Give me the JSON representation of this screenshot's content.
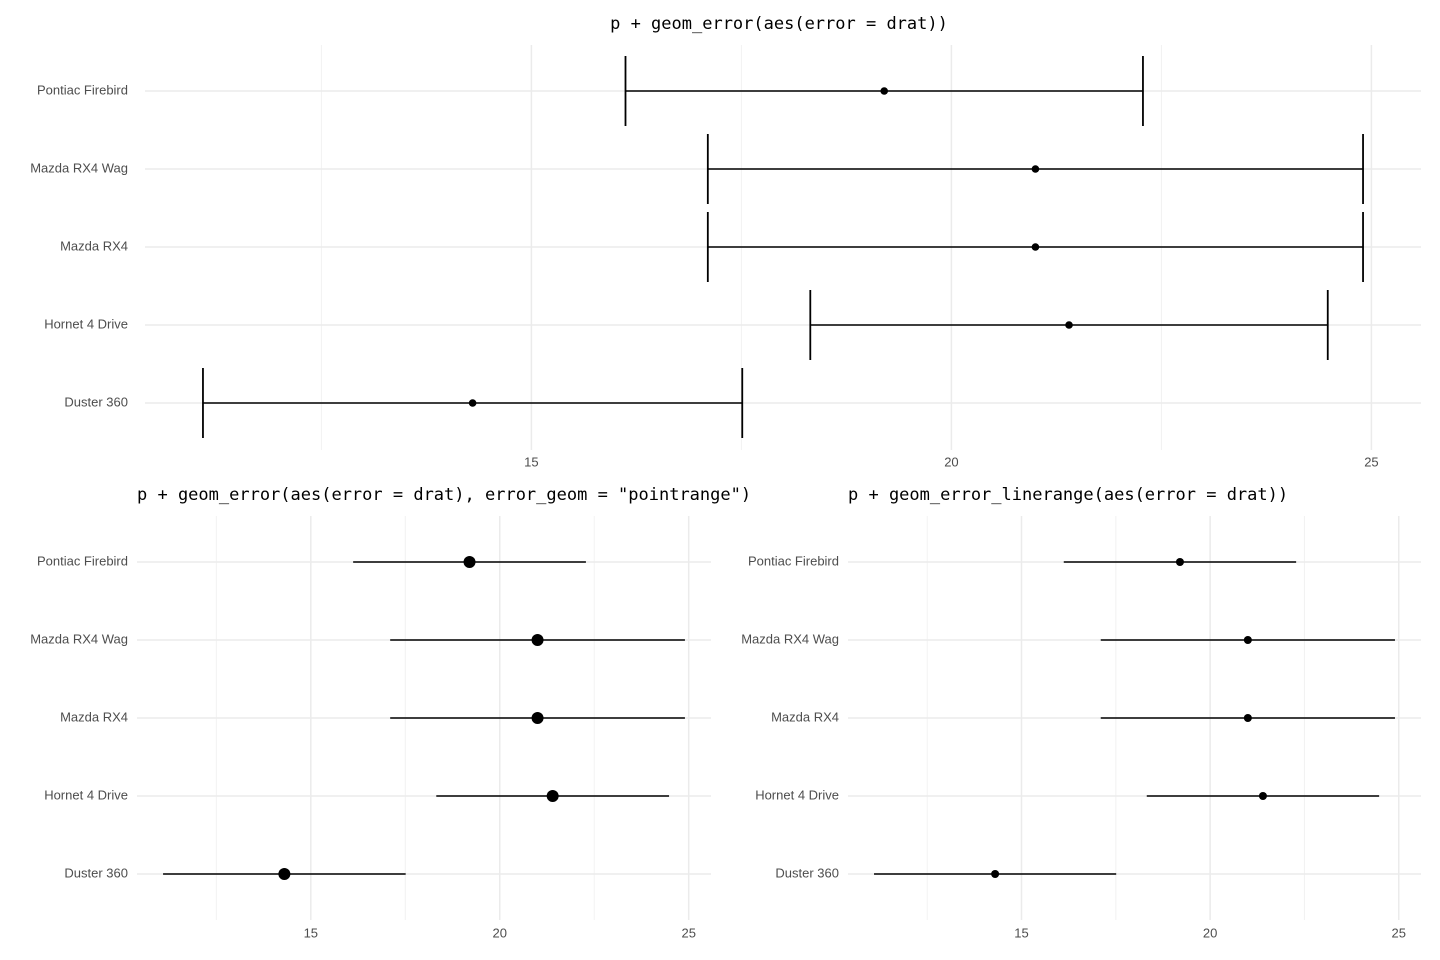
{
  "chart_data": [
    {
      "type": "errorbar",
      "title": "p + geom_error(aes(error = drat))",
      "categories": [
        "Pontiac Firebird",
        "Mazda RX4 Wag",
        "Mazda RX4",
        "Hornet 4 Drive",
        "Duster 360"
      ],
      "values": [
        19.2,
        21.0,
        21.0,
        21.4,
        14.3
      ],
      "errors": [
        3.08,
        3.9,
        3.9,
        3.08,
        3.21
      ],
      "color": "#000000",
      "xlim": [
        10.4,
        25.59
      ],
      "xticks": [
        15,
        20,
        25
      ],
      "xminor": [
        12.5,
        17.5,
        22.5
      ],
      "grid": true
    },
    {
      "type": "pointrange",
      "title": "p + geom_error(aes(error = drat), error_geom = \"pointrange\")",
      "categories": [
        "Pontiac Firebird",
        "Mazda RX4 Wag",
        "Mazda RX4",
        "Hornet 4 Drive",
        "Duster 360"
      ],
      "values": [
        19.2,
        21.0,
        21.0,
        21.4,
        14.3
      ],
      "errors": [
        3.08,
        3.9,
        3.9,
        3.08,
        3.21
      ],
      "color": "#000000",
      "xlim": [
        10.4,
        25.59
      ],
      "xticks": [
        15,
        20,
        25
      ],
      "xminor": [
        12.5,
        17.5,
        22.5
      ],
      "grid": true
    },
    {
      "type": "linerange",
      "title": "p + geom_error_linerange(aes(error = drat))",
      "categories": [
        "Pontiac Firebird",
        "Mazda RX4 Wag",
        "Mazda RX4",
        "Hornet 4 Drive",
        "Duster 360"
      ],
      "values": [
        19.2,
        21.0,
        21.0,
        21.4,
        14.3
      ],
      "errors": [
        3.08,
        3.9,
        3.9,
        3.08,
        3.21
      ],
      "color": "#000000",
      "xlim": [
        10.4,
        25.59
      ],
      "xticks": [
        15,
        20,
        25
      ],
      "xminor": [
        12.5,
        17.5,
        22.5
      ],
      "grid": true
    }
  ]
}
